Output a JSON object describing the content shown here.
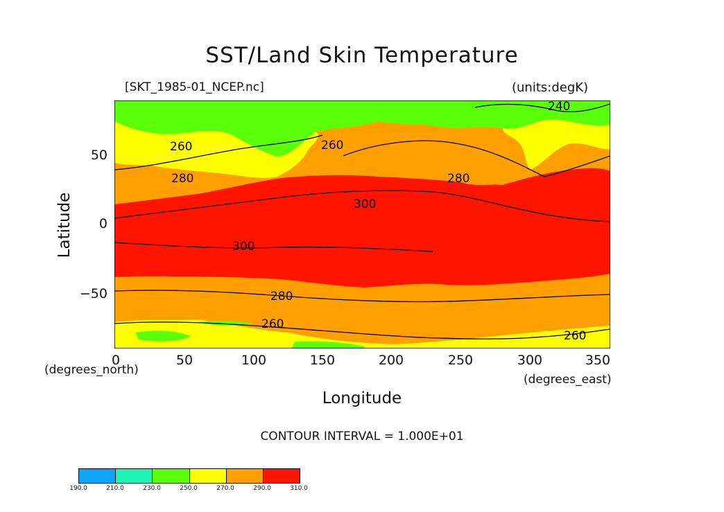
{
  "title": "SST/Land Skin Temperature",
  "file_label": "[SKT_1985-01_NCEP.nc]",
  "units_label": "(units:degK)",
  "x_axis": {
    "label": "Longitude",
    "ticks": [
      "0",
      "50",
      "100",
      "150",
      "200",
      "250",
      "300",
      "350"
    ],
    "unit_label": "(degrees_east)",
    "range": [
      0,
      357.5
    ]
  },
  "y_axis": {
    "label": "Latitude",
    "ticks": [
      "50",
      "0",
      "−50"
    ],
    "unit_label": "(degrees_north)",
    "range": [
      -90,
      88
    ]
  },
  "contour_interval": "CONTOUR INTERVAL = 1.000E+01",
  "contour_labels": [
    "240",
    "260",
    "260",
    "280",
    "280",
    "300",
    "300",
    "280",
    "260",
    "260"
  ],
  "colorbar": {
    "labels": [
      "190.0",
      "210.0",
      "230.0",
      "250.0",
      "270.0",
      "290.0",
      "310.0"
    ],
    "colors": [
      "#0fa5ff",
      "#1ef5b4",
      "#5aff0a",
      "#ffff00",
      "#ffa000",
      "#ff1400"
    ]
  },
  "colors": {
    "band_230_250": "#5aff0a",
    "band_250_270": "#ffff00",
    "band_270_290": "#ffa000",
    "band_290_310": "#ff1400"
  }
}
